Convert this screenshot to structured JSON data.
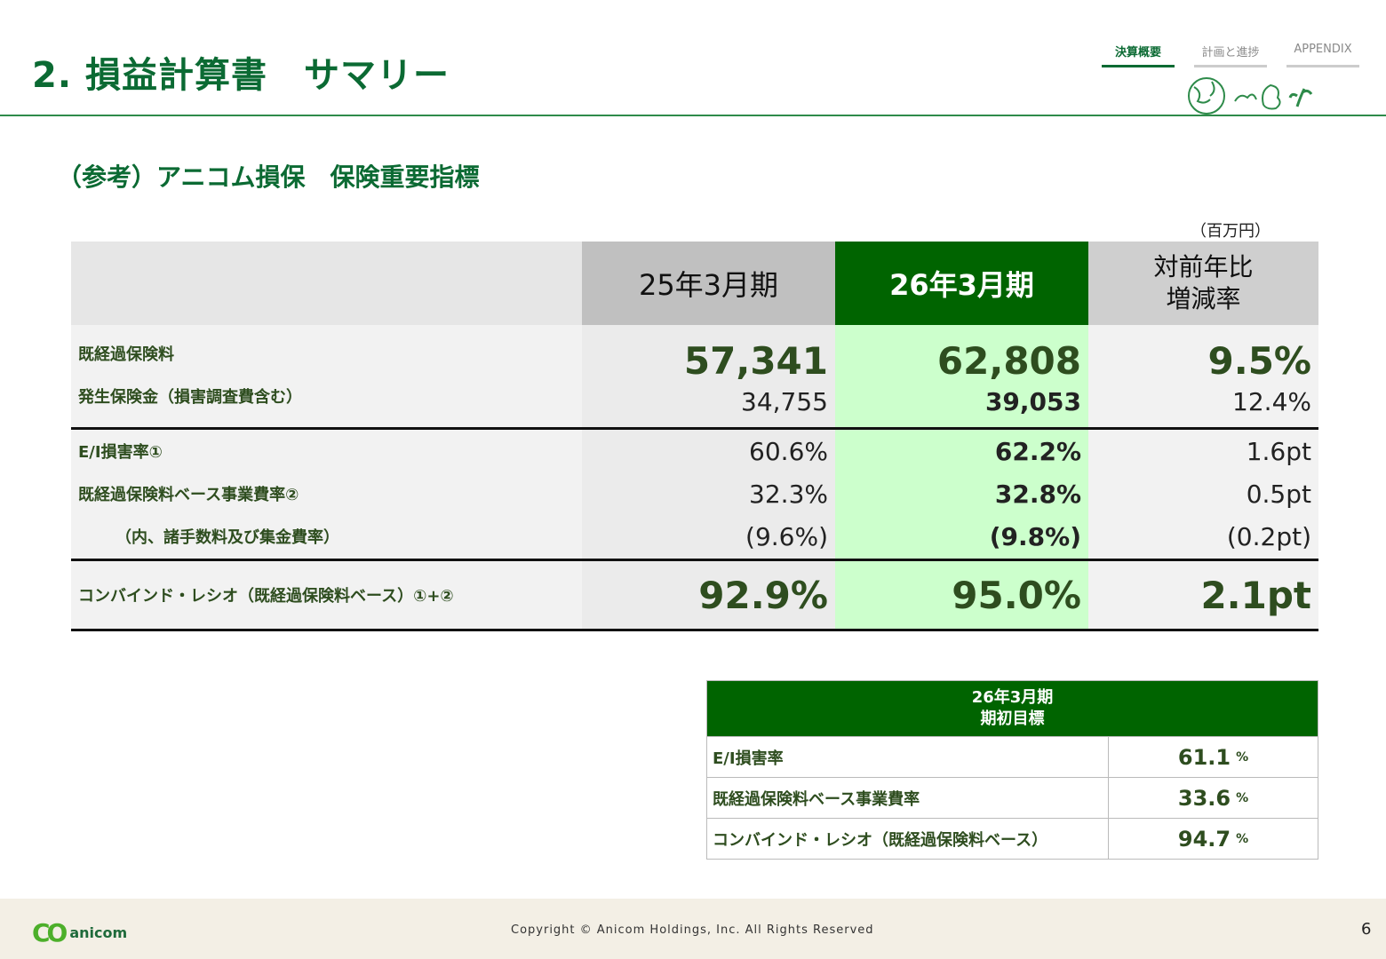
{
  "title": "2. 損益計算書　サマリー",
  "nav": {
    "items": [
      "決算概要",
      "計画と進捗",
      "APPENDIX"
    ]
  },
  "section_title": "（参考）アニコム損保　保険重要指標",
  "unit": "（百万円）",
  "table": {
    "headers": {
      "col1": "25年3月期",
      "col2": "26年3月期",
      "col3_line1": "対前年比",
      "col3_line2": "増減率"
    },
    "rows": [
      {
        "label": "既経過保険料",
        "v1": "57,341",
        "v2": "62,808",
        "v3": "9.5%"
      },
      {
        "label": "発生保険金（損害調査費含む）",
        "v1": "34,755",
        "v2": "39,053",
        "v3": "12.4%"
      },
      {
        "label": "E/I損害率①",
        "v1": "60.6%",
        "v2": "62.2%",
        "v3": "1.6pt"
      },
      {
        "label": "既経過保険料ベース事業費率②",
        "v1": "32.3%",
        "v2": "32.8%",
        "v3": "0.5pt"
      },
      {
        "label": "（内、諸手数料及び集金費率）",
        "v1": "(9.6%)",
        "v2": "(9.8%)",
        "v3": "(0.2pt)"
      },
      {
        "label": "コンバインド・レシオ（既経過保険料ベース）①+②",
        "v1": "92.9%",
        "v2": "95.0%",
        "v3": "2.1pt"
      }
    ]
  },
  "target": {
    "header_line1": "26年3月期",
    "header_line2": "期初目標",
    "rows": [
      {
        "label": "E/I損害率",
        "value": "61.1",
        "unit": "%"
      },
      {
        "label": "既経過保険料ベース事業費率",
        "value": "33.6",
        "unit": "%"
      },
      {
        "label": "コンバインド・レシオ（既経過保険料ベース）",
        "value": "94.7",
        "unit": "%"
      }
    ]
  },
  "footer": {
    "logo_text": "anicom",
    "copyright": "Copyright © Anicom Holdings, Inc. All Rights Reserved",
    "page_number": "6"
  }
}
